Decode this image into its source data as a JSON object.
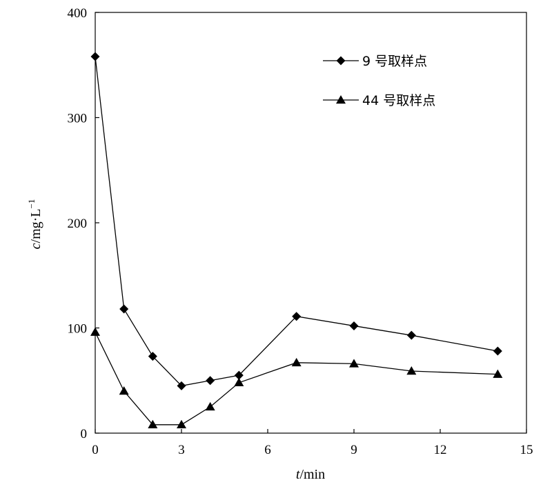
{
  "chart_data": {
    "type": "line",
    "xlabel": {
      "italic": "t",
      "rest": "/min"
    },
    "ylabel": {
      "italic": "c",
      "rest": "/mg·L",
      "sup": "−1"
    },
    "xlim": [
      0,
      15
    ],
    "ylim": [
      0,
      400
    ],
    "xticks": [
      0,
      3,
      6,
      9,
      12,
      15
    ],
    "yticks": [
      0,
      100,
      200,
      300,
      400
    ],
    "grid": false,
    "legend": "top-right",
    "series": [
      {
        "name": "9 号取样点",
        "marker": "diamond",
        "color": "#000000",
        "x": [
          0,
          1,
          2,
          3,
          4,
          5,
          7,
          9,
          11,
          14
        ],
        "y": [
          358,
          118,
          73,
          45,
          50,
          55,
          111,
          102,
          93,
          78
        ]
      },
      {
        "name": "44 号取样点",
        "marker": "triangle",
        "color": "#000000",
        "x": [
          0,
          1,
          2,
          3,
          4,
          5,
          7,
          9,
          11,
          14
        ],
        "y": [
          96,
          40,
          8,
          8,
          25,
          48,
          67,
          66,
          59,
          56
        ]
      }
    ]
  }
}
